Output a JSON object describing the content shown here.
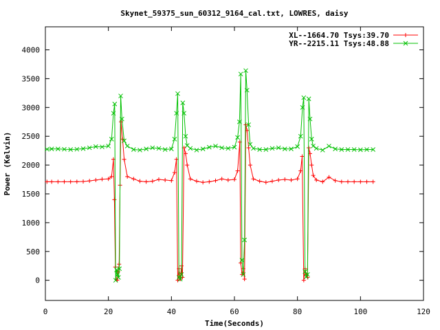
{
  "chart_data": {
    "type": "line",
    "title": "Skynet_59375_sun_60312_9164_cal.txt, LOWRES, daisy",
    "xlabel": "Time(Seconds)",
    "ylabel": "Power (Kelvin)",
    "xlim": [
      0,
      120
    ],
    "ylim": [
      -350,
      4400
    ],
    "xticks": [
      0,
      20,
      40,
      60,
      80,
      100,
      120
    ],
    "yticks": [
      0,
      500,
      1000,
      1500,
      2000,
      2500,
      3000,
      3500,
      4000
    ],
    "legend_position": "top-right",
    "grid": false,
    "series": [
      {
        "name": "XL--1664.70 Tsys:39.70",
        "color": "#ff0000",
        "marker": "plus",
        "points": [
          [
            0.5,
            1710
          ],
          [
            2,
            1710
          ],
          [
            4,
            1710
          ],
          [
            6,
            1710
          ],
          [
            8,
            1710
          ],
          [
            10,
            1712
          ],
          [
            12,
            1715
          ],
          [
            14,
            1725
          ],
          [
            16,
            1740
          ],
          [
            18,
            1755
          ],
          [
            20,
            1760
          ],
          [
            21,
            1800
          ],
          [
            21.6,
            2100
          ],
          [
            21.9,
            1400
          ],
          [
            22.2,
            230
          ],
          [
            22.5,
            20
          ],
          [
            22.8,
            0
          ],
          [
            23.1,
            150
          ],
          [
            23.4,
            280
          ],
          [
            23.7,
            1650
          ],
          [
            24,
            2750
          ],
          [
            24.5,
            2450
          ],
          [
            25,
            2100
          ],
          [
            26,
            1800
          ],
          [
            28,
            1760
          ],
          [
            30,
            1720
          ],
          [
            32,
            1710
          ],
          [
            34,
            1720
          ],
          [
            36,
            1750
          ],
          [
            38,
            1740
          ],
          [
            40,
            1730
          ],
          [
            41,
            1870
          ],
          [
            41.6,
            2100
          ],
          [
            42,
            0
          ],
          [
            42.4,
            200
          ],
          [
            42.8,
            20
          ],
          [
            43.2,
            250
          ],
          [
            43.5,
            50
          ],
          [
            44,
            2300
          ],
          [
            44.5,
            2200
          ],
          [
            45,
            2000
          ],
          [
            46,
            1760
          ],
          [
            48,
            1720
          ],
          [
            50,
            1700
          ],
          [
            52,
            1710
          ],
          [
            54,
            1730
          ],
          [
            56,
            1760
          ],
          [
            58,
            1740
          ],
          [
            60,
            1750
          ],
          [
            61,
            1900
          ],
          [
            61.7,
            2400
          ],
          [
            62,
            300
          ],
          [
            62.4,
            100
          ],
          [
            62.8,
            200
          ],
          [
            63.2,
            20
          ],
          [
            63.6,
            2700
          ],
          [
            64,
            2600
          ],
          [
            64.5,
            2300
          ],
          [
            65,
            2000
          ],
          [
            66,
            1760
          ],
          [
            68,
            1720
          ],
          [
            70,
            1700
          ],
          [
            72,
            1720
          ],
          [
            74,
            1740
          ],
          [
            76,
            1750
          ],
          [
            78,
            1740
          ],
          [
            80,
            1760
          ],
          [
            81,
            1900
          ],
          [
            81.5,
            2150
          ],
          [
            82,
            0
          ],
          [
            82.4,
            200
          ],
          [
            82.8,
            100
          ],
          [
            83.2,
            50
          ],
          [
            83.6,
            2300
          ],
          [
            84,
            2200
          ],
          [
            84.5,
            2000
          ],
          [
            85,
            1820
          ],
          [
            86,
            1740
          ],
          [
            88,
            1710
          ],
          [
            90,
            1790
          ],
          [
            92,
            1730
          ],
          [
            94,
            1710
          ],
          [
            96,
            1710
          ],
          [
            98,
            1710
          ],
          [
            100,
            1710
          ],
          [
            102,
            1710
          ],
          [
            104,
            1710
          ]
        ]
      },
      {
        "name": "YR--2215.11 Tsys:48.88",
        "color": "#00c000",
        "marker": "x",
        "points": [
          [
            0.5,
            2275
          ],
          [
            2,
            2280
          ],
          [
            4,
            2280
          ],
          [
            6,
            2275
          ],
          [
            8,
            2270
          ],
          [
            10,
            2275
          ],
          [
            12,
            2285
          ],
          [
            14,
            2300
          ],
          [
            16,
            2320
          ],
          [
            18,
            2315
          ],
          [
            20,
            2330
          ],
          [
            21,
            2450
          ],
          [
            21.6,
            2900
          ],
          [
            22,
            3060
          ],
          [
            22.3,
            0
          ],
          [
            22.6,
            180
          ],
          [
            22.9,
            100
          ],
          [
            23.2,
            50
          ],
          [
            23.5,
            200
          ],
          [
            23.9,
            3200
          ],
          [
            24.3,
            2800
          ],
          [
            25,
            2420
          ],
          [
            26,
            2330
          ],
          [
            28,
            2270
          ],
          [
            30,
            2260
          ],
          [
            32,
            2280
          ],
          [
            34,
            2300
          ],
          [
            36,
            2290
          ],
          [
            38,
            2270
          ],
          [
            40,
            2280
          ],
          [
            41,
            2450
          ],
          [
            41.6,
            2900
          ],
          [
            42,
            3240
          ],
          [
            42.4,
            50
          ],
          [
            42.8,
            20
          ],
          [
            43.2,
            100
          ],
          [
            43.6,
            3080
          ],
          [
            44,
            2900
          ],
          [
            44.5,
            2500
          ],
          [
            45,
            2340
          ],
          [
            46,
            2290
          ],
          [
            48,
            2260
          ],
          [
            50,
            2280
          ],
          [
            52,
            2310
          ],
          [
            54,
            2330
          ],
          [
            56,
            2300
          ],
          [
            58,
            2290
          ],
          [
            60,
            2310
          ],
          [
            61,
            2480
          ],
          [
            61.6,
            2750
          ],
          [
            62,
            3580
          ],
          [
            62.4,
            350
          ],
          [
            62.8,
            100
          ],
          [
            63.2,
            700
          ],
          [
            63.6,
            3640
          ],
          [
            64,
            3300
          ],
          [
            64.5,
            2700
          ],
          [
            65,
            2360
          ],
          [
            66,
            2290
          ],
          [
            68,
            2270
          ],
          [
            70,
            2270
          ],
          [
            72,
            2290
          ],
          [
            74,
            2300
          ],
          [
            76,
            2280
          ],
          [
            78,
            2280
          ],
          [
            80,
            2320
          ],
          [
            81,
            2500
          ],
          [
            81.6,
            3000
          ],
          [
            82,
            3170
          ],
          [
            82.4,
            150
          ],
          [
            82.8,
            60
          ],
          [
            83.2,
            100
          ],
          [
            83.6,
            3150
          ],
          [
            84,
            2800
          ],
          [
            84.5,
            2450
          ],
          [
            85,
            2330
          ],
          [
            86,
            2290
          ],
          [
            88,
            2260
          ],
          [
            90,
            2330
          ],
          [
            92,
            2280
          ],
          [
            94,
            2270
          ],
          [
            96,
            2270
          ],
          [
            98,
            2270
          ],
          [
            100,
            2265
          ],
          [
            102,
            2270
          ],
          [
            104,
            2270
          ]
        ]
      }
    ]
  }
}
